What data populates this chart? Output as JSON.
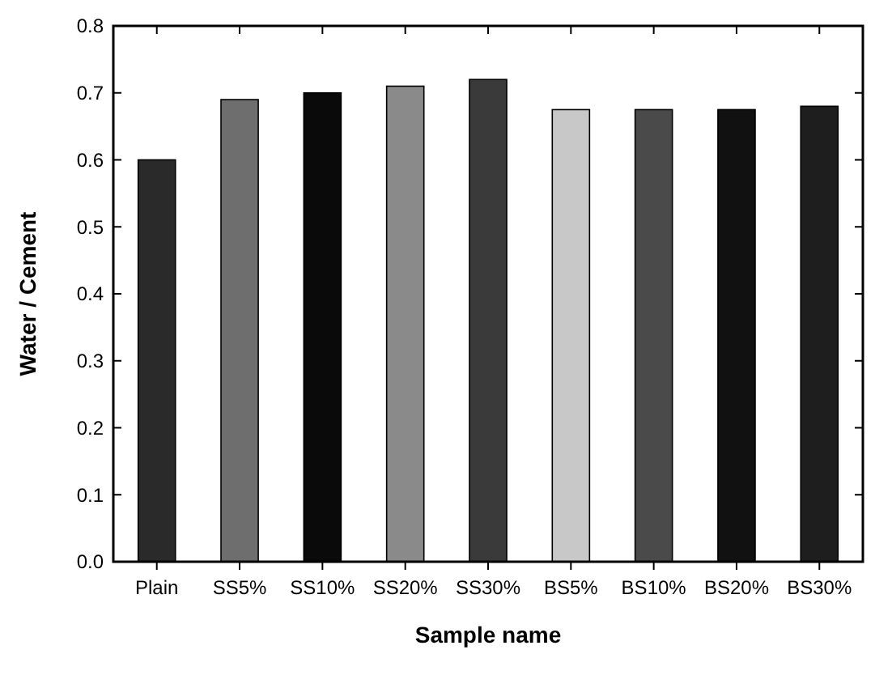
{
  "chart_data": {
    "type": "bar",
    "xlabel": "Sample name",
    "ylabel": "Water / Cement",
    "categories": [
      "Plain",
      "SS5%",
      "SS10%",
      "SS20%",
      "SS30%",
      "BS5%",
      "BS10%",
      "BS20%",
      "BS30%"
    ],
    "values": [
      0.6,
      0.69,
      0.7,
      0.71,
      0.72,
      0.675,
      0.675,
      0.675,
      0.68
    ],
    "colors": [
      "#2a2a2a",
      "#6e6e6e",
      "#0a0a0a",
      "#8a8a8a",
      "#3a3a3a",
      "#c8c8c8",
      "#4a4a4a",
      "#111111",
      "#1e1e1e"
    ],
    "ylim": [
      0,
      0.8
    ],
    "yticks": [
      {
        "value": 0,
        "label": "0.0"
      },
      0.1,
      0.2,
      0.3,
      0.4,
      0.5,
      0.6,
      0.7,
      0.8
    ],
    "grid": false
  }
}
